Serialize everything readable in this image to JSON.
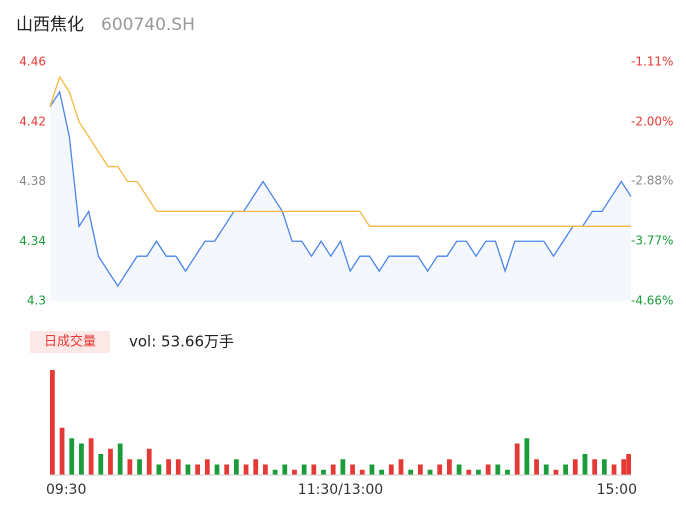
{
  "header": {
    "name": "山西焦化",
    "code": "600740.SH"
  },
  "chart_data": [
    {
      "type": "line",
      "x": [
        0,
        4,
        8,
        12,
        16,
        20,
        24,
        28,
        32,
        36,
        40,
        44,
        48,
        52,
        56,
        60,
        64,
        68,
        72,
        76,
        80,
        84,
        88,
        92,
        96,
        100,
        104,
        108,
        112,
        116,
        120,
        124,
        128,
        132,
        136,
        140,
        144,
        148,
        152,
        156,
        160,
        164,
        168,
        172,
        176,
        180,
        184,
        188,
        192,
        196,
        200,
        204,
        208,
        212,
        216,
        220,
        224,
        228,
        232,
        236,
        240
      ],
      "xlim": [
        0,
        240
      ],
      "series": [
        {
          "name": "price",
          "color": "#4a86e8",
          "values": [
            4.43,
            4.44,
            4.41,
            4.35,
            4.36,
            4.33,
            4.32,
            4.31,
            4.32,
            4.33,
            4.33,
            4.34,
            4.33,
            4.33,
            4.32,
            4.33,
            4.34,
            4.34,
            4.35,
            4.36,
            4.36,
            4.37,
            4.38,
            4.37,
            4.36,
            4.34,
            4.34,
            4.33,
            4.34,
            4.33,
            4.34,
            4.32,
            4.33,
            4.33,
            4.32,
            4.33,
            4.33,
            4.33,
            4.33,
            4.32,
            4.33,
            4.33,
            4.34,
            4.34,
            4.33,
            4.34,
            4.34,
            4.32,
            4.34,
            4.34,
            4.34,
            4.34,
            4.33,
            4.34,
            4.35,
            4.35,
            4.36,
            4.36,
            4.37,
            4.38,
            4.37
          ]
        },
        {
          "name": "average",
          "color": "#f5b942",
          "values": [
            4.43,
            4.45,
            4.44,
            4.42,
            4.41,
            4.4,
            4.39,
            4.39,
            4.38,
            4.38,
            4.37,
            4.36,
            4.36,
            4.36,
            4.36,
            4.36,
            4.36,
            4.36,
            4.36,
            4.36,
            4.36,
            4.36,
            4.36,
            4.36,
            4.36,
            4.36,
            4.36,
            4.36,
            4.36,
            4.36,
            4.36,
            4.36,
            4.36,
            4.35,
            4.35,
            4.35,
            4.35,
            4.35,
            4.35,
            4.35,
            4.35,
            4.35,
            4.35,
            4.35,
            4.35,
            4.35,
            4.35,
            4.35,
            4.35,
            4.35,
            4.35,
            4.35,
            4.35,
            4.35,
            4.35,
            4.35,
            4.35,
            4.35,
            4.35,
            4.35,
            4.35
          ]
        }
      ],
      "ylim": [
        4.3,
        4.46
      ],
      "yticks": [
        4.46,
        4.42,
        4.38,
        4.34,
        4.3
      ],
      "y2lim": [
        -4.66,
        -1.11
      ],
      "y2ticks": [
        {
          "value": -1.11,
          "label": "-1.11%"
        },
        {
          "value": -2.0,
          "label": "-2.00%"
        },
        {
          "value": -2.88,
          "label": "-2.88%"
        },
        {
          "value": -3.77,
          "label": "-3.77%"
        },
        {
          "value": -4.66,
          "label": "-4.66%"
        }
      ],
      "tick_colors": [
        "#e53935",
        "#e53935",
        "#888888",
        "#1a9c3a",
        "#1a9c3a"
      ],
      "area_color": "#f4f7fc"
    },
    {
      "type": "bar",
      "legend": "日成交量",
      "text": "vol: 53.66万手",
      "x": [
        0,
        4,
        8,
        12,
        16,
        20,
        24,
        28,
        32,
        36,
        40,
        44,
        48,
        52,
        56,
        60,
        64,
        68,
        72,
        76,
        80,
        84,
        88,
        92,
        96,
        100,
        104,
        108,
        112,
        116,
        120,
        124,
        128,
        132,
        136,
        140,
        144,
        148,
        152,
        156,
        160,
        164,
        168,
        172,
        176,
        180,
        184,
        188,
        192,
        196,
        200,
        204,
        208,
        212,
        216,
        220,
        224,
        228,
        232,
        236,
        240
      ],
      "xlim": [
        0,
        240
      ],
      "xticks": [
        {
          "value": 0,
          "label": "09:30"
        },
        {
          "value": 120,
          "label": "11:30/13:00"
        },
        {
          "value": 240,
          "label": "15:00"
        }
      ],
      "values": [
        2.0,
        0.9,
        0.7,
        0.6,
        0.7,
        0.4,
        0.5,
        0.6,
        0.3,
        0.3,
        0.5,
        0.2,
        0.3,
        0.3,
        0.2,
        0.2,
        0.3,
        0.2,
        0.2,
        0.3,
        0.2,
        0.3,
        0.2,
        0.1,
        0.2,
        0.1,
        0.2,
        0.2,
        0.1,
        0.2,
        0.3,
        0.2,
        0.1,
        0.2,
        0.1,
        0.2,
        0.3,
        0.1,
        0.2,
        0.1,
        0.2,
        0.3,
        0.2,
        0.1,
        0.1,
        0.2,
        0.2,
        0.1,
        0.6,
        0.7,
        0.3,
        0.2,
        0.1,
        0.2,
        0.3,
        0.4,
        0.3,
        0.3,
        0.2,
        0.3,
        0.4
      ],
      "colors": [
        "#e53935",
        "#e53935",
        "#1a9c3a",
        "#1a9c3a",
        "#e53935",
        "#1a9c3a",
        "#e53935",
        "#1a9c3a",
        "#e53935",
        "#1a9c3a",
        "#e53935",
        "#1a9c3a",
        "#e53935",
        "#e53935",
        "#1a9c3a",
        "#e53935",
        "#e53935",
        "#1a9c3a",
        "#e53935",
        "#1a9c3a",
        "#e53935",
        "#e53935",
        "#e53935",
        "#1a9c3a",
        "#1a9c3a",
        "#e53935",
        "#1a9c3a",
        "#e53935",
        "#1a9c3a",
        "#e53935",
        "#1a9c3a",
        "#e53935",
        "#e53935",
        "#1a9c3a",
        "#1a9c3a",
        "#e53935",
        "#e53935",
        "#1a9c3a",
        "#e53935",
        "#1a9c3a",
        "#e53935",
        "#e53935",
        "#1a9c3a",
        "#e53935",
        "#1a9c3a",
        "#e53935",
        "#1a9c3a",
        "#1a9c3a",
        "#e53935",
        "#1a9c3a",
        "#e53935",
        "#1a9c3a",
        "#e53935",
        "#1a9c3a",
        "#e53935",
        "#1a9c3a",
        "#e53935",
        "#1a9c3a",
        "#e53935",
        "#e53935",
        "#e53935"
      ]
    }
  ]
}
